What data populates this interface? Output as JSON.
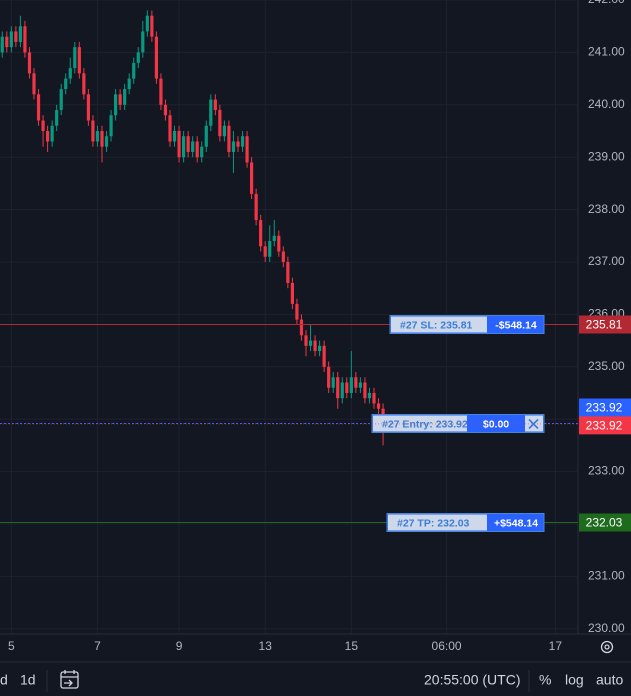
{
  "chart_data": {
    "type": "candlestick",
    "open": [
      241.0,
      241.3,
      241.1,
      241.4,
      241.2,
      241.5,
      241.0,
      240.6,
      240.2,
      239.7,
      239.5,
      239.3,
      239.6,
      239.9,
      240.3,
      240.5,
      240.7,
      241.1,
      240.6,
      240.2,
      239.7,
      239.3,
      239.5,
      239.2,
      239.4,
      239.8,
      240.2,
      240.0,
      240.3,
      240.5,
      240.8,
      241.0,
      241.4,
      241.7,
      241.3,
      240.5,
      240.0,
      239.8,
      239.3,
      239.5,
      239.0,
      239.4,
      239.1,
      239.3,
      239.0,
      239.2,
      239.6,
      240.1,
      239.9,
      239.4,
      239.6,
      239.1,
      239.3,
      239.2,
      239.4,
      238.9,
      238.3,
      237.8,
      237.3,
      237.1,
      237.4,
      237.5,
      237.2,
      237.0,
      236.6,
      236.2,
      235.9,
      235.6,
      235.4,
      235.5,
      235.3,
      235.4,
      235.0,
      234.6,
      234.8,
      234.4,
      234.7,
      234.5,
      234.8,
      234.6,
      234.7,
      234.4,
      234.5,
      234.3,
      234.2
    ],
    "high": [
      241.4,
      241.4,
      241.5,
      241.5,
      241.7,
      241.6,
      241.1,
      240.7,
      240.3,
      239.8,
      239.6,
      239.7,
      240.0,
      240.4,
      240.6,
      240.9,
      241.2,
      241.2,
      240.7,
      240.3,
      239.8,
      239.6,
      239.6,
      239.5,
      239.9,
      240.3,
      240.3,
      240.4,
      240.6,
      240.9,
      241.1,
      241.6,
      241.8,
      241.8,
      241.4,
      240.6,
      240.1,
      239.9,
      239.6,
      239.6,
      239.5,
      239.5,
      239.4,
      239.4,
      239.3,
      239.7,
      240.2,
      240.2,
      240.0,
      239.7,
      239.7,
      239.5,
      239.4,
      239.5,
      239.5,
      239.0,
      238.4,
      237.9,
      237.4,
      237.7,
      237.8,
      237.6,
      237.3,
      237.1,
      236.7,
      236.3,
      236.0,
      235.7,
      235.8,
      235.6,
      235.5,
      235.5,
      235.1,
      234.9,
      234.9,
      234.8,
      234.8,
      235.3,
      234.9,
      234.8,
      234.8,
      234.6,
      234.6,
      234.4,
      234.3
    ],
    "low": [
      240.9,
      241.0,
      241.0,
      241.1,
      241.1,
      240.9,
      240.5,
      240.1,
      239.6,
      239.2,
      239.1,
      239.2,
      239.5,
      239.8,
      240.2,
      240.4,
      240.6,
      240.5,
      240.1,
      239.6,
      239.2,
      239.2,
      238.9,
      239.1,
      239.3,
      239.7,
      239.9,
      239.9,
      240.2,
      240.4,
      240.7,
      240.9,
      241.3,
      241.2,
      240.4,
      239.9,
      239.7,
      239.2,
      239.2,
      238.9,
      238.9,
      239.0,
      239.0,
      238.9,
      238.9,
      239.1,
      239.5,
      239.8,
      239.3,
      239.3,
      239.0,
      238.7,
      239.1,
      239.1,
      238.8,
      238.2,
      237.7,
      237.2,
      237.0,
      237.0,
      237.3,
      237.1,
      236.9,
      236.5,
      236.1,
      235.8,
      235.5,
      235.2,
      235.3,
      235.2,
      235.2,
      234.9,
      234.5,
      234.5,
      234.2,
      234.3,
      234.4,
      234.4,
      234.5,
      234.5,
      234.3,
      234.3,
      234.2,
      234.0,
      233.5
    ],
    "close": [
      241.3,
      241.1,
      241.4,
      241.2,
      241.5,
      241.0,
      240.6,
      240.2,
      239.7,
      239.5,
      239.3,
      239.6,
      239.9,
      240.3,
      240.5,
      240.7,
      241.1,
      240.6,
      240.2,
      239.7,
      239.3,
      239.5,
      239.2,
      239.4,
      239.8,
      240.2,
      240.0,
      240.3,
      240.5,
      240.8,
      241.0,
      241.4,
      241.7,
      241.3,
      240.5,
      240.0,
      239.8,
      239.3,
      239.5,
      239.0,
      239.4,
      239.1,
      239.3,
      239.0,
      239.2,
      239.6,
      240.1,
      239.9,
      239.4,
      239.6,
      239.1,
      239.3,
      239.2,
      239.4,
      238.9,
      238.3,
      237.8,
      237.3,
      237.1,
      237.4,
      237.5,
      237.2,
      237.0,
      236.6,
      236.2,
      235.9,
      235.6,
      235.4,
      235.5,
      235.3,
      235.4,
      235.0,
      234.6,
      234.8,
      234.4,
      234.7,
      234.5,
      234.8,
      234.6,
      234.7,
      234.4,
      234.5,
      234.3,
      234.2,
      233.92
    ],
    "up_color": "#089981",
    "down_color": "#f23645",
    "xlim": [
      -0.5,
      127
    ],
    "xticks": [
      {
        "value": 2,
        "label": "5"
      },
      {
        "value": 21,
        "label": "7"
      },
      {
        "value": 39,
        "label": "9"
      },
      {
        "value": 58,
        "label": "13"
      },
      {
        "value": 77,
        "label": "15"
      },
      {
        "value": 98,
        "label": "06:00"
      },
      {
        "value": 122,
        "label": "17"
      }
    ],
    "ylim": [
      229.9,
      242.0
    ],
    "yticks": [
      {
        "value": 230,
        "label": "230.00"
      },
      {
        "value": 231,
        "label": "231.00"
      },
      {
        "value": 232,
        "label": "232.00"
      },
      {
        "value": 233,
        "label": "233.00"
      },
      {
        "value": 234,
        "label": "234.00"
      },
      {
        "value": 235,
        "label": "235.00"
      },
      {
        "value": 236,
        "label": "236.00"
      },
      {
        "value": 237,
        "label": "237.00"
      },
      {
        "value": 238,
        "label": "238.00"
      },
      {
        "value": 239,
        "label": "239.00"
      },
      {
        "value": 240,
        "label": "240.00"
      },
      {
        "value": 241,
        "label": "241.00"
      },
      {
        "value": 242,
        "label": "242.00"
      }
    ],
    "grid": true,
    "orders": [
      {
        "label": "#27 SL: 235.81",
        "pnl": "-$548.14",
        "price": 235.81,
        "color": "#b22833"
      },
      {
        "label": "#27 Entry: 233.92",
        "pnl": "$0.00",
        "price": 233.92,
        "color": "#2962ff"
      },
      {
        "label": "#27 TP: 232.03",
        "pnl": "+$548.14",
        "price": 232.03,
        "color": "#1e6b1e"
      }
    ]
  },
  "toolbar": {
    "intervals": [
      "d",
      "1d"
    ],
    "time": "20:55:00 (UTC)",
    "scale_options": [
      "%",
      "log",
      "auto"
    ]
  }
}
